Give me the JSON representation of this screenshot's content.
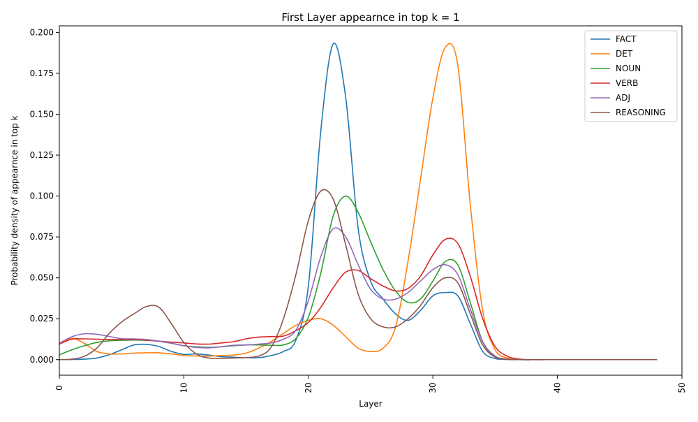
{
  "chart_data": {
    "type": "line",
    "title": "First Layer appearnce in top k = 1",
    "xlabel": "Layer",
    "ylabel": "Probability density of appearnce in top k",
    "xlim": [
      0,
      50
    ],
    "ylim": [
      -0.0095,
      0.204
    ],
    "x_ticks": [
      0,
      10,
      20,
      30,
      40,
      50
    ],
    "x_tick_labels": [
      "0",
      "10",
      "20",
      "30",
      "40",
      "50"
    ],
    "y_ticks": [
      0.0,
      0.025,
      0.05,
      0.075,
      0.1,
      0.125,
      0.15,
      0.175,
      0.2
    ],
    "y_tick_labels": [
      "0.000",
      "0.025",
      "0.050",
      "0.075",
      "0.100",
      "0.125",
      "0.150",
      "0.175",
      "0.200"
    ],
    "grid": false,
    "legend_position": "top-right",
    "x": [
      0,
      1,
      2,
      3,
      4,
      5,
      6,
      7,
      8,
      9,
      10,
      11,
      12,
      13,
      14,
      15,
      16,
      17,
      18,
      19,
      20,
      21,
      22,
      23,
      24,
      25,
      26,
      27,
      28,
      29,
      30,
      31,
      32,
      33,
      34,
      35,
      36,
      37,
      38,
      39,
      40,
      42,
      44,
      46,
      48
    ],
    "series": [
      {
        "name": "FACT",
        "color": "#1f77b4",
        "values": [
          0.0,
          0.0001,
          0.0003,
          0.001,
          0.003,
          0.006,
          0.009,
          0.0093,
          0.008,
          0.005,
          0.0032,
          0.0035,
          0.0028,
          0.0018,
          0.0015,
          0.0012,
          0.0012,
          0.0025,
          0.005,
          0.012,
          0.045,
          0.14,
          0.193,
          0.16,
          0.08,
          0.048,
          0.037,
          0.028,
          0.024,
          0.03,
          0.039,
          0.041,
          0.039,
          0.022,
          0.005,
          0.0007,
          0.0001,
          0.0,
          0.0,
          0.0,
          0.0,
          0.0,
          0.0,
          0.0,
          0.0
        ]
      },
      {
        "name": "DET",
        "color": "#ff7f0e",
        "values": [
          0.0095,
          0.013,
          0.01,
          0.005,
          0.0035,
          0.0035,
          0.004,
          0.0042,
          0.0042,
          0.0035,
          0.0025,
          0.0022,
          0.0022,
          0.0025,
          0.0028,
          0.004,
          0.007,
          0.011,
          0.016,
          0.021,
          0.024,
          0.025,
          0.021,
          0.014,
          0.007,
          0.005,
          0.007,
          0.02,
          0.06,
          0.11,
          0.16,
          0.191,
          0.18,
          0.095,
          0.03,
          0.006,
          0.001,
          0.0001,
          0.0,
          0.0,
          0.0,
          0.0,
          0.0,
          0.0,
          0.0
        ]
      },
      {
        "name": "NOUN",
        "color": "#2ca02c",
        "values": [
          0.003,
          0.006,
          0.0085,
          0.0105,
          0.0115,
          0.0118,
          0.012,
          0.0118,
          0.0112,
          0.01,
          0.0085,
          0.0078,
          0.0075,
          0.0078,
          0.0085,
          0.009,
          0.009,
          0.0088,
          0.009,
          0.013,
          0.026,
          0.053,
          0.088,
          0.1,
          0.09,
          0.072,
          0.055,
          0.042,
          0.035,
          0.037,
          0.048,
          0.06,
          0.058,
          0.035,
          0.011,
          0.002,
          0.0002,
          0.0,
          0.0,
          0.0,
          0.0,
          0.0,
          0.0,
          0.0,
          0.0
        ]
      },
      {
        "name": "VERB",
        "color": "#d62728",
        "values": [
          0.0095,
          0.0125,
          0.0127,
          0.0125,
          0.0123,
          0.0122,
          0.0122,
          0.0119,
          0.0113,
          0.0107,
          0.0102,
          0.0096,
          0.0095,
          0.0102,
          0.011,
          0.0127,
          0.0138,
          0.0141,
          0.0144,
          0.0177,
          0.0227,
          0.032,
          0.044,
          0.0535,
          0.0545,
          0.0495,
          0.045,
          0.042,
          0.0435,
          0.051,
          0.064,
          0.0735,
          0.071,
          0.051,
          0.025,
          0.008,
          0.002,
          0.0003,
          0.0,
          0.0,
          0.0,
          0.0,
          0.0,
          0.0,
          0.0
        ]
      },
      {
        "name": "ADJ",
        "color": "#9467bd",
        "values": [
          0.01,
          0.014,
          0.0158,
          0.0155,
          0.0142,
          0.0128,
          0.0127,
          0.0123,
          0.0113,
          0.0101,
          0.0085,
          0.0075,
          0.0072,
          0.0079,
          0.0088,
          0.009,
          0.0095,
          0.0102,
          0.0125,
          0.018,
          0.036,
          0.063,
          0.08,
          0.075,
          0.058,
          0.043,
          0.037,
          0.037,
          0.041,
          0.048,
          0.055,
          0.058,
          0.052,
          0.031,
          0.011,
          0.0022,
          0.0003,
          0.0,
          0.0,
          0.0,
          0.0,
          0.0,
          0.0,
          0.0,
          0.0
        ]
      },
      {
        "name": "REASONING",
        "color": "#8c564b",
        "values": [
          0.0,
          0.0003,
          0.002,
          0.007,
          0.016,
          0.023,
          0.028,
          0.0325,
          0.032,
          0.022,
          0.0105,
          0.0035,
          0.001,
          0.0008,
          0.001,
          0.0013,
          0.0022,
          0.0075,
          0.025,
          0.052,
          0.085,
          0.103,
          0.098,
          0.07,
          0.04,
          0.025,
          0.02,
          0.02,
          0.025,
          0.033,
          0.044,
          0.05,
          0.047,
          0.028,
          0.009,
          0.0015,
          0.0002,
          0.0,
          0.0,
          0.0,
          0.0,
          0.0,
          0.0,
          0.0,
          0.0
        ]
      }
    ]
  }
}
